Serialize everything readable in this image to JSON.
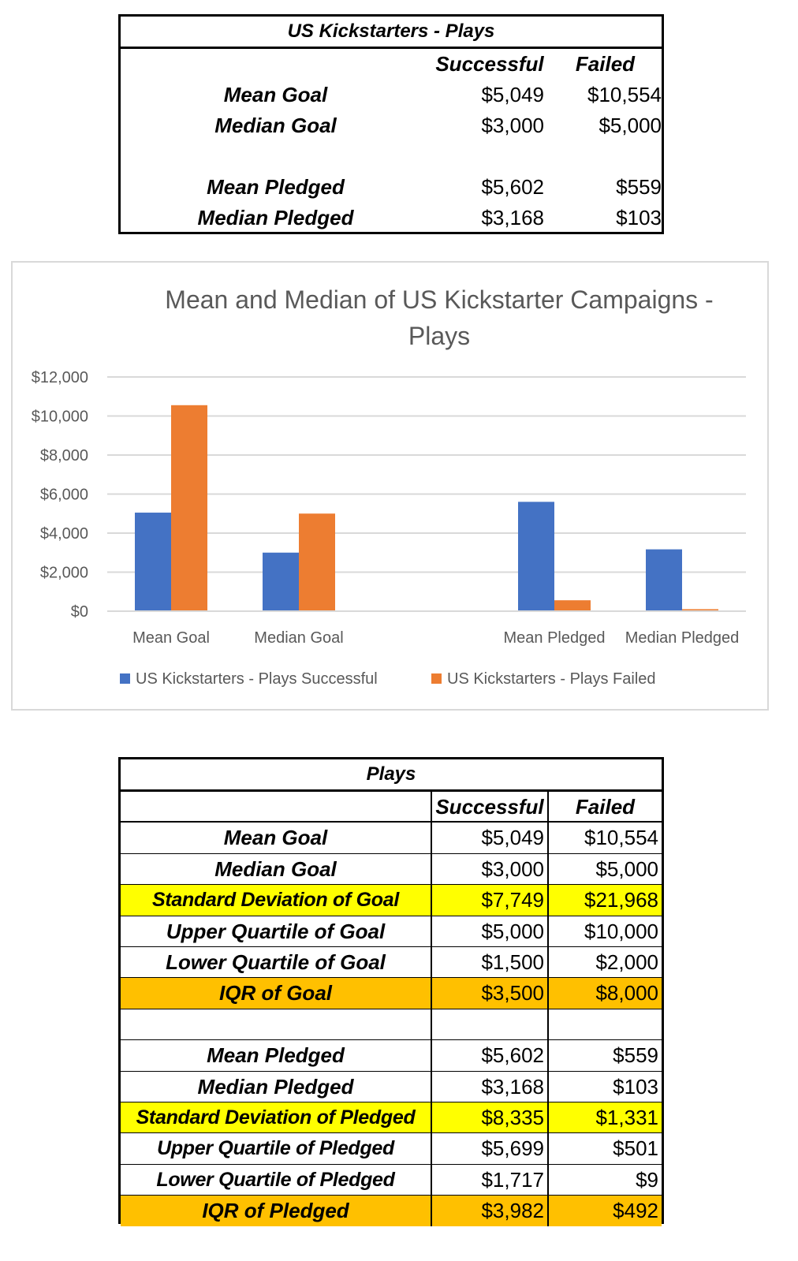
{
  "top_table": {
    "title": "US Kickstarters - Plays",
    "col_headers": [
      "Successful",
      "Failed"
    ],
    "rows": [
      {
        "label": "Mean Goal",
        "successful": "$5,049",
        "failed": "$10,554"
      },
      {
        "label": "Median Goal",
        "successful": "$3,000",
        "failed": "$5,000"
      },
      {
        "label": "Mean Pledged",
        "successful": "$5,602",
        "failed": "$559"
      },
      {
        "label": "Median Pledged",
        "successful": "$3,168",
        "failed": "$103"
      }
    ]
  },
  "chart_data": {
    "type": "bar",
    "title": "Mean and Median of US Kickstarter Campaigns - Plays",
    "title_lines": [
      "Mean and Median of US Kickstarter Campaigns -",
      "Plays"
    ],
    "categories": [
      "Mean Goal",
      "Median Goal",
      "",
      "Mean Pledged",
      "Median Pledged"
    ],
    "series": [
      {
        "name": "US Kickstarters - Plays Successful",
        "values": [
          5049,
          3000,
          null,
          5602,
          3168
        ],
        "color": "#4472c4"
      },
      {
        "name": "US Kickstarters - Plays Failed",
        "values": [
          10554,
          5000,
          null,
          559,
          103
        ],
        "color": "#ed7d31"
      }
    ],
    "ylim": [
      0,
      12000
    ],
    "yticks": [
      0,
      2000,
      4000,
      6000,
      8000,
      10000,
      12000
    ],
    "ytick_labels": [
      "$0",
      "$2,000",
      "$4,000",
      "$6,000",
      "$8,000",
      "$10,000",
      "$12,000"
    ],
    "grid": true,
    "legend": "bottom",
    "xlabel": "",
    "ylabel": ""
  },
  "bottom_table": {
    "title": "Plays",
    "col_headers": [
      "Successful",
      "Failed"
    ],
    "rows": [
      {
        "label": "Mean Goal",
        "successful": "$5,049",
        "failed": "$10,554",
        "highlight": ""
      },
      {
        "label": "Median Goal",
        "successful": "$3,000",
        "failed": "$5,000",
        "highlight": ""
      },
      {
        "label": "Standard Deviation of Goal",
        "successful": "$7,749",
        "failed": "$21,968",
        "highlight": "yellow"
      },
      {
        "label": "Upper Quartile of Goal",
        "successful": "$5,000",
        "failed": "$10,000",
        "highlight": ""
      },
      {
        "label": "Lower Quartile of Goal",
        "successful": "$1,500",
        "failed": "$2,000",
        "highlight": ""
      },
      {
        "label": "IQR of Goal",
        "successful": "$3,500",
        "failed": "$8,000",
        "highlight": "orange"
      },
      {
        "label": "",
        "successful": "",
        "failed": "",
        "highlight": ""
      },
      {
        "label": "Mean Pledged",
        "successful": "$5,602",
        "failed": "$559",
        "highlight": ""
      },
      {
        "label": "Median Pledged",
        "successful": "$3,168",
        "failed": "$103",
        "highlight": ""
      },
      {
        "label": "Standard Deviation of Pledged",
        "successful": "$8,335",
        "failed": "$1,331",
        "highlight": "yellow"
      },
      {
        "label": "Upper Quartile of Pledged",
        "successful": "$5,699",
        "failed": "$501",
        "highlight": ""
      },
      {
        "label": "Lower Quartile of Pledged",
        "successful": "$1,717",
        "failed": "$9",
        "highlight": ""
      },
      {
        "label": "IQR of Pledged",
        "successful": "$3,982",
        "failed": "$492",
        "highlight": "orange"
      }
    ]
  }
}
